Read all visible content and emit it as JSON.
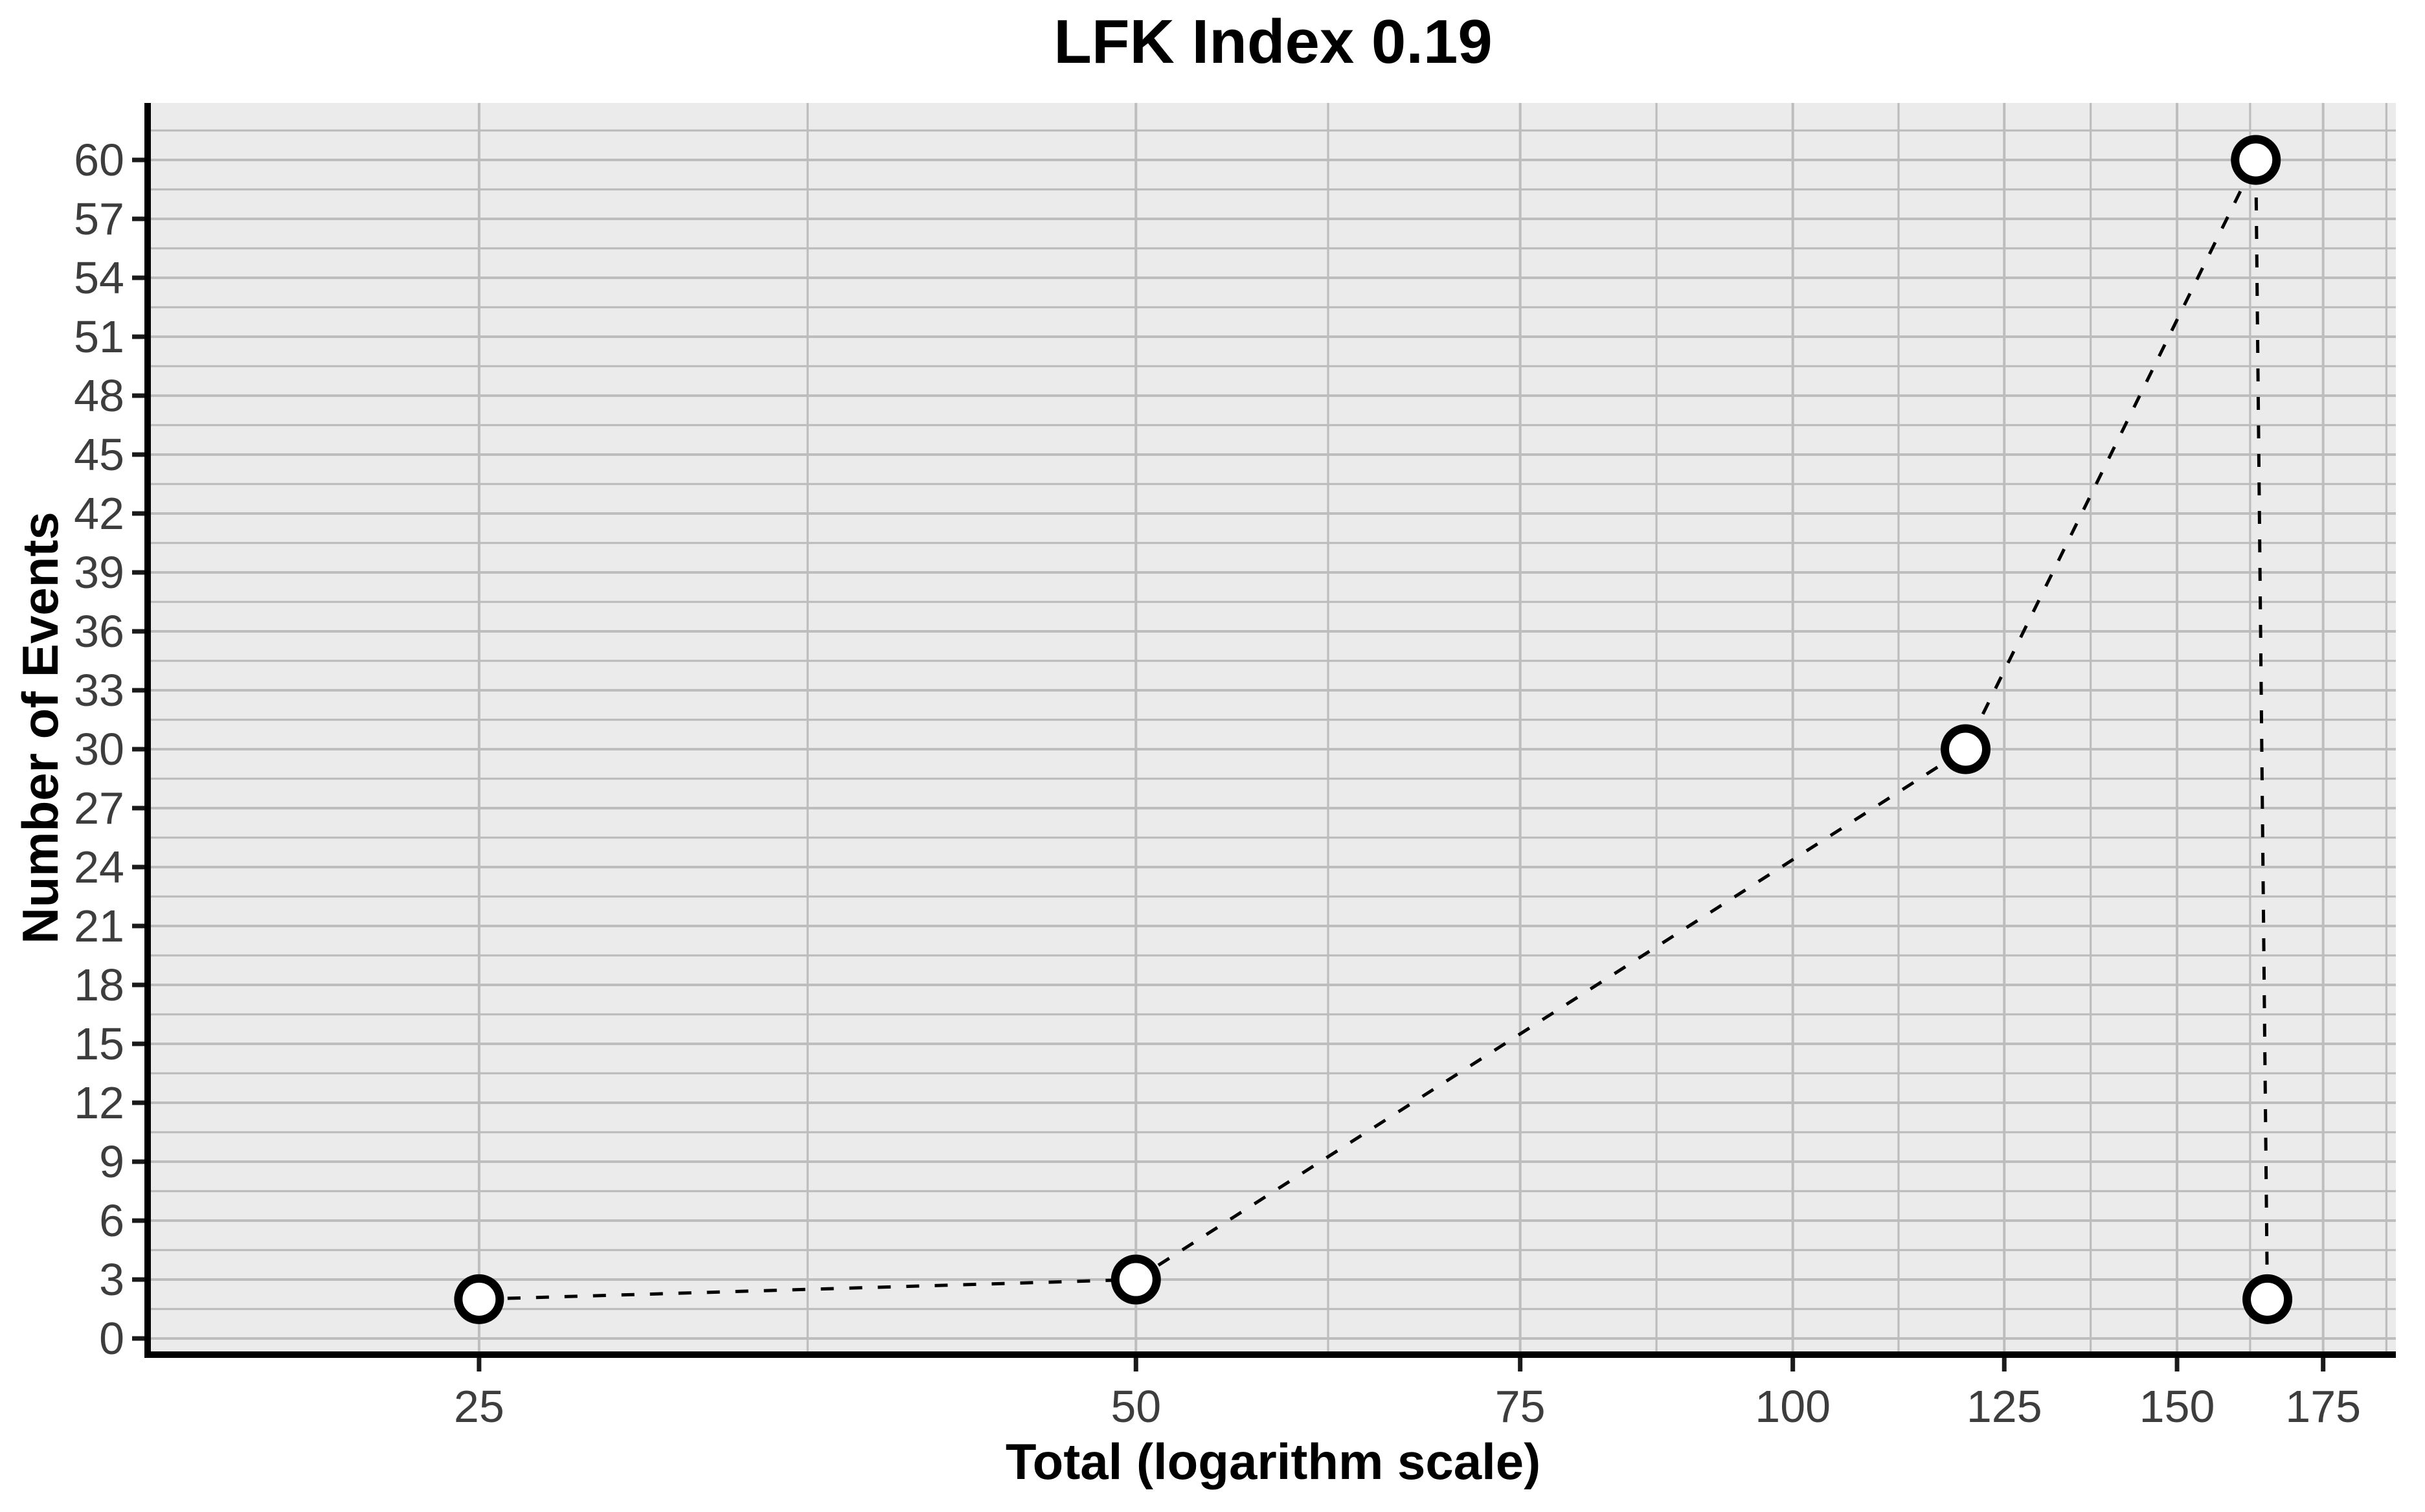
{
  "figure": {
    "title": "LFK Index 0.19",
    "x_axis_label": "Total (logarithm scale)",
    "y_axis_label": "Number of Events"
  },
  "chart_data": {
    "type": "line",
    "title": "LFK Index 0.19",
    "xlabel": "Total (logarithm scale)",
    "ylabel": "Number of Events",
    "x_scale": "log",
    "y_scale": "linear",
    "x": [
      25,
      50,
      120,
      163,
      165
    ],
    "y": [
      2,
      3,
      30,
      60,
      2
    ],
    "marker": "open-circle",
    "line_style": "dashed",
    "legend": "none",
    "grid": true,
    "x_ticks": [
      25,
      50,
      75,
      100,
      125,
      150,
      175
    ],
    "x_tick_labels": [
      "25",
      "50",
      "75",
      "100",
      "125",
      "150",
      "175"
    ],
    "y_ticks": [
      0,
      3,
      6,
      9,
      12,
      15,
      18,
      21,
      24,
      27,
      30,
      33,
      36,
      39,
      42,
      45,
      48,
      51,
      54,
      57,
      60
    ],
    "y_tick_labels": [
      "0",
      "3",
      "6",
      "9",
      "12",
      "15",
      "18",
      "21",
      "24",
      "27",
      "30",
      "33",
      "36",
      "39",
      "42",
      "45",
      "48",
      "51",
      "54",
      "57",
      "60"
    ],
    "x_minor_gridlines": [
      35.36,
      61.24,
      86.6,
      111.8,
      136.93,
      162.02,
      187.08
    ],
    "y_minor_gridlines": [
      1.5,
      4.5,
      7.5,
      10.5,
      13.5,
      16.5,
      19.5,
      22.5,
      25.5,
      28.5,
      31.5,
      34.5,
      37.5,
      40.5,
      43.5,
      46.5,
      49.5,
      52.5,
      55.5,
      58.5,
      61.5
    ],
    "x_domain": [
      17.67,
      188.96
    ],
    "y_domain": [
      -0.79,
      62.9
    ],
    "colors": {
      "panel_background": "#ebebeb",
      "gridline": "#bdbdbd",
      "axis_line": "#000000",
      "tick_mark": "#1a1a1a",
      "tick_label": "#3d3d3d",
      "series_line": "#000000",
      "point_fill": "#ffffff",
      "point_stroke": "#000000",
      "title_color": "#000000"
    }
  }
}
